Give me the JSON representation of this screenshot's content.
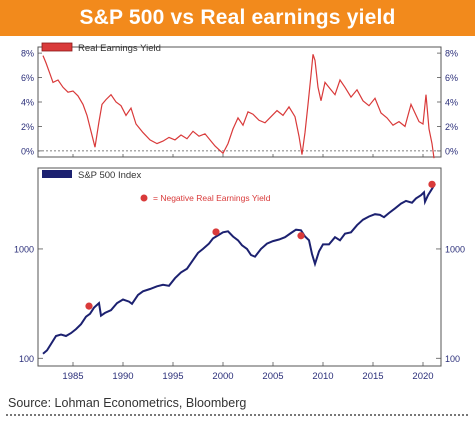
{
  "title": "S&P 500 vs Real earnings yield",
  "source": "Source: Lohman Econometrics, Bloomberg",
  "colors": {
    "banner": "#f28a1c",
    "earnings_line": "#d93a3a",
    "index_line": "#1c2170",
    "marker": "#d93a3a",
    "axis_text": "#2b2f7a"
  },
  "chart_data": [
    {
      "type": "line",
      "legend": "Real Earnings Yield",
      "legend_placement": "top-left",
      "ylim": [
        -0.5,
        8.5
      ],
      "yticks": [
        0,
        2,
        4,
        6,
        8
      ],
      "ytick_labels": [
        "0%",
        "2%",
        "4%",
        "6%",
        "8%"
      ],
      "zero_line": "dashed",
      "series": [
        {
          "x": [
            1982.0,
            1982.3,
            1982.7,
            1983.0,
            1983.5,
            1984.0,
            1984.5,
            1985.0,
            1985.5,
            1986.0,
            1986.4,
            1986.8,
            1987.2,
            1987.6,
            1987.9,
            1988.3,
            1988.8,
            1989.3,
            1989.8,
            1990.3,
            1990.8,
            1991.3,
            1992.0,
            1992.7,
            1993.4,
            1994.0,
            1994.6,
            1995.2,
            1995.8,
            1996.4,
            1997.0,
            1997.6,
            1998.2,
            1998.8,
            1999.2,
            1999.6,
            2000.0,
            2000.5,
            2001.0,
            2001.5,
            2002.0,
            2002.5,
            2003.0,
            2003.6,
            2004.2,
            2004.8,
            2005.4,
            2006.0,
            2006.6,
            2007.2,
            2007.6,
            2007.9,
            2008.2,
            2008.5,
            2008.8,
            2009.0,
            2009.2,
            2009.5,
            2009.8,
            2010.2,
            2010.7,
            2011.2,
            2011.7,
            2012.2,
            2012.8,
            2013.4,
            2014.0,
            2014.6,
            2015.2,
            2015.8,
            2016.4,
            2017.0,
            2017.6,
            2018.2,
            2018.8,
            2019.2,
            2019.6,
            2020.0,
            2020.3,
            2020.6,
            2020.9,
            2021.1
          ],
          "y": [
            7.8,
            7.2,
            6.3,
            5.6,
            5.8,
            5.2,
            4.8,
            4.9,
            4.5,
            3.8,
            2.9,
            1.6,
            0.3,
            2.4,
            3.8,
            4.2,
            4.6,
            4.0,
            3.7,
            2.9,
            3.5,
            2.2,
            1.5,
            0.9,
            0.6,
            0.8,
            1.1,
            0.9,
            1.3,
            1.0,
            1.6,
            1.2,
            1.4,
            0.8,
            0.4,
            0.1,
            -0.2,
            0.6,
            1.8,
            2.7,
            2.1,
            3.2,
            3.0,
            2.5,
            2.3,
            2.8,
            3.3,
            2.9,
            3.6,
            2.8,
            1.2,
            -0.3,
            1.5,
            3.8,
            6.2,
            7.9,
            7.4,
            5.2,
            4.1,
            5.6,
            5.1,
            4.6,
            5.8,
            5.2,
            4.4,
            5.0,
            4.1,
            3.7,
            4.3,
            3.1,
            2.7,
            2.1,
            2.4,
            2.0,
            3.8,
            3.1,
            2.4,
            2.2,
            4.6,
            1.8,
            0.6,
            -0.6
          ]
        }
      ]
    },
    {
      "type": "line",
      "legend": "S&P 500 Index",
      "legend_placement": "top-left",
      "yscale": "log",
      "ylim": [
        85,
        5500
      ],
      "yticks": [
        100,
        1000
      ],
      "ytick_labels": [
        "100",
        "1000"
      ],
      "xlim": [
        1981.5,
        2021.8
      ],
      "xticks": [
        1985,
        1990,
        1995,
        2000,
        2005,
        2010,
        2015,
        2020
      ],
      "xtick_labels": [
        "1985",
        "1990",
        "1995",
        "2000",
        "2005",
        "2010",
        "2015",
        "2020"
      ],
      "annotation": "= Negative Real Earnings Yield",
      "series": [
        {
          "x": [
            1982.0,
            1982.4,
            1982.8,
            1983.3,
            1983.8,
            1984.3,
            1984.8,
            1985.3,
            1985.8,
            1986.3,
            1986.7,
            1987.1,
            1987.6,
            1987.8,
            1988.2,
            1988.8,
            1989.4,
            1990.0,
            1990.6,
            1990.9,
            1991.5,
            1992.0,
            1992.7,
            1993.4,
            1994.0,
            1994.6,
            1995.2,
            1995.8,
            1996.4,
            1997.0,
            1997.5,
            1998.0,
            1998.6,
            1999.0,
            1999.5,
            2000.0,
            2000.5,
            2001.0,
            2001.5,
            2001.9,
            2002.4,
            2002.8,
            2003.2,
            2003.8,
            2004.4,
            2005.0,
            2005.6,
            2006.2,
            2006.8,
            2007.3,
            2007.8,
            2008.2,
            2008.6,
            2008.9,
            2009.2,
            2009.6,
            2010.0,
            2010.6,
            2011.2,
            2011.7,
            2012.2,
            2012.8,
            2013.4,
            2014.0,
            2014.6,
            2015.2,
            2015.7,
            2016.1,
            2016.6,
            2017.2,
            2017.8,
            2018.3,
            2018.9,
            2019.3,
            2019.8,
            2020.1,
            2020.2,
            2020.5,
            2020.9,
            2021.2
          ],
          "y": [
            110,
            118,
            135,
            160,
            165,
            160,
            170,
            185,
            205,
            240,
            255,
            290,
            320,
            245,
            260,
            275,
            320,
            345,
            330,
            315,
            380,
            410,
            430,
            455,
            470,
            460,
            540,
            610,
            660,
            790,
            920,
            1000,
            1120,
            1250,
            1330,
            1420,
            1450,
            1300,
            1200,
            1080,
            1000,
            880,
            850,
            1000,
            1120,
            1180,
            1220,
            1280,
            1400,
            1500,
            1480,
            1300,
            1200,
            900,
            730,
            950,
            1100,
            1100,
            1280,
            1200,
            1380,
            1420,
            1650,
            1850,
            1980,
            2080,
            2050,
            1950,
            2130,
            2350,
            2600,
            2750,
            2650,
            2900,
            3100,
            3300,
            2700,
            3100,
            3550,
            3950
          ]
        }
      ],
      "markers": {
        "x": [
          1986.6,
          1999.3,
          2007.8,
          2020.9
        ],
        "y": [
          300,
          1430,
          1320,
          3900
        ]
      }
    }
  ]
}
